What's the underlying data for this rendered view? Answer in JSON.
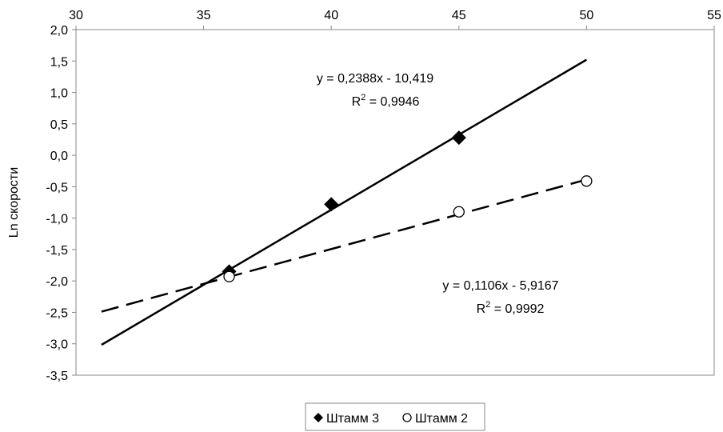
{
  "chart_data": {
    "type": "scatter",
    "title": "",
    "xlabel": "",
    "ylabel": "Ln скорости",
    "xlim": [
      30,
      55
    ],
    "ylim": [
      -3.5,
      2.0
    ],
    "x_ticks": [
      "30",
      "35",
      "40",
      "45",
      "50",
      "55"
    ],
    "y_ticks": [
      "2,0",
      "1,5",
      "1,0",
      "0,5",
      "0,0",
      "-0,5",
      "-1,0",
      "-1,5",
      "-2,0",
      "-2,5",
      "-3,0",
      "-3,5"
    ],
    "x_axis_position": "top",
    "grid": false,
    "legend_position": "bottom",
    "series": [
      {
        "name": "Штамм 3",
        "marker": "filled-diamond",
        "color": "#000000",
        "x": [
          36,
          40,
          45
        ],
        "y": [
          -1.85,
          -0.78,
          0.28
        ],
        "trendline": {
          "style": "solid",
          "slope": 0.2388,
          "intercept": -10.419,
          "x_range": [
            31,
            50
          ],
          "equation": "y = 0,2388x - 10,419",
          "r2_label": "R",
          "r2_value": " = 0,9946"
        }
      },
      {
        "name": "Штамм 2",
        "marker": "open-circle",
        "color": "#000000",
        "x": [
          36,
          45,
          50
        ],
        "y": [
          -1.93,
          -0.9,
          -0.41
        ],
        "trendline": {
          "style": "dashed",
          "slope": 0.1106,
          "intercept": -5.9167,
          "x_range": [
            31,
            50
          ],
          "equation": "y = 0,1106x - 5,9167",
          "r2_label": "R",
          "r2_value": " = 0,9992"
        }
      }
    ]
  }
}
